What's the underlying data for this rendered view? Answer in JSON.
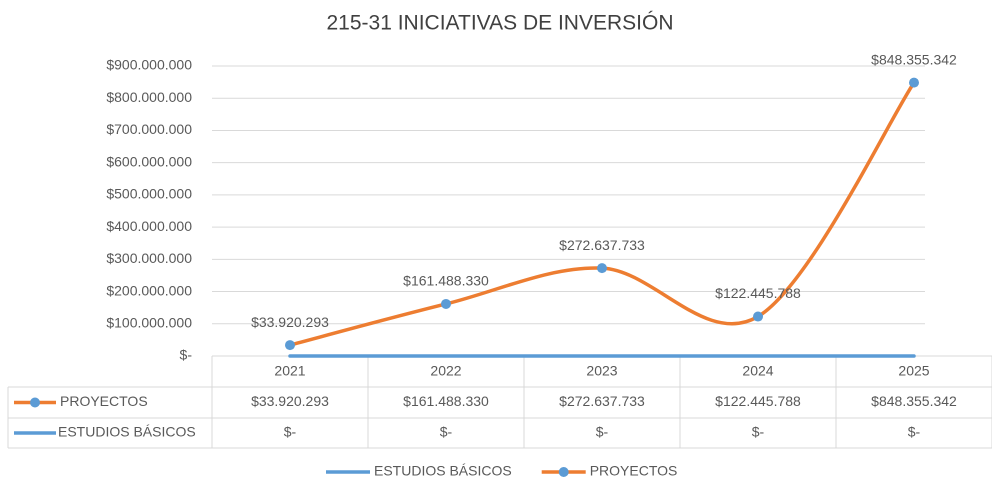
{
  "chart_data": {
    "type": "line",
    "title": "215-31 INICIATIVAS DE INVERSIÓN",
    "categories": [
      "2021",
      "2022",
      "2023",
      "2024",
      "2025"
    ],
    "series": [
      {
        "name": "PROYECTOS",
        "color": "#ed7d31",
        "smooth": true,
        "markers": true,
        "values": [
          33920293,
          161488330,
          272637733,
          122445788,
          848355342
        ],
        "value_labels": [
          "$33.920.293",
          "$161.488.330",
          "$272.637.733",
          "$122.445.788",
          "$848.355.342"
        ]
      },
      {
        "name": "ESTUDIOS BÁSICOS",
        "color": "#5b9bd5",
        "smooth": false,
        "markers": false,
        "values": [
          0,
          0,
          0,
          0,
          0
        ],
        "value_labels": [
          "$-",
          "$-",
          "$-",
          "$-",
          "$-"
        ]
      }
    ],
    "ylim": [
      0,
      900000000
    ],
    "yticks": [
      {
        "value": 0,
        "label": "$-"
      },
      {
        "value": 100000000,
        "label": "$100.000.000"
      },
      {
        "value": 200000000,
        "label": "$200.000.000"
      },
      {
        "value": 300000000,
        "label": "$300.000.000"
      },
      {
        "value": 400000000,
        "label": "$400.000.000"
      },
      {
        "value": 500000000,
        "label": "$500.000.000"
      },
      {
        "value": 600000000,
        "label": "$600.000.000"
      },
      {
        "value": 700000000,
        "label": "$700.000.000"
      },
      {
        "value": 800000000,
        "label": "$800.000.000"
      },
      {
        "value": 900000000,
        "label": "$900.000.000"
      }
    ],
    "grid": true,
    "data_table": true,
    "legend": "bottom"
  }
}
